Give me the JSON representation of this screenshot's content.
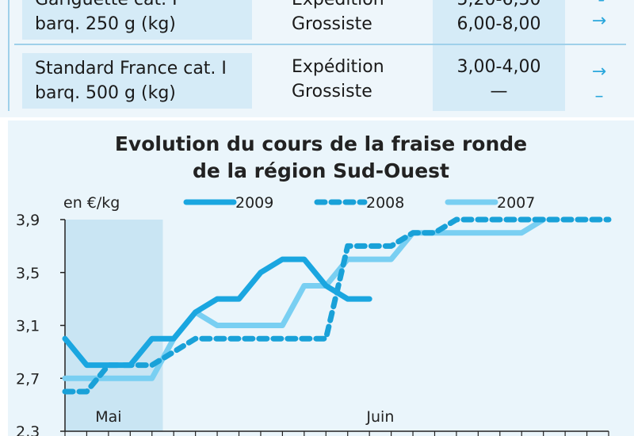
{
  "table": {
    "rows": [
      {
        "product_line1": "Gariguette cat. I",
        "product_line2": "barq. 250 g (kg)",
        "circuit1": "Expédition",
        "circuit2": "Grossiste",
        "price1": "5,20-6,50",
        "price2": "6,00-8,00",
        "trend1": "↘",
        "trend2": "→"
      },
      {
        "product_line1": "Standard France cat. I",
        "product_line2": "barq. 500 g (kg)",
        "circuit1": "Expédition",
        "circuit2": "Grossiste",
        "price1": "3,00-4,00",
        "price2": "—",
        "trend1": "→",
        "trend2": "–"
      }
    ]
  },
  "colors": {
    "s2009": "#1aa6e0",
    "s2008": "#19a1d8",
    "s2007": "#79cff2",
    "may_band": "#c9e5f3",
    "panel": "#eaf5fb"
  },
  "chart_data": {
    "type": "line",
    "title": "Evolution du cours de la fraise ronde",
    "subtitle": "de la région Sud-Ouest",
    "ylabel": "en €/kg",
    "xlabel": "",
    "ylim": [
      2.3,
      3.9
    ],
    "yticks": [
      "3,9",
      "3,5",
      "3,1",
      "2,7",
      "2,3"
    ],
    "ytick_values": [
      3.9,
      3.5,
      3.1,
      2.7,
      2.3
    ],
    "xlim": [
      0,
      25
    ],
    "month_labels": [
      {
        "label": "Mai",
        "x": 2
      },
      {
        "label": "Juin",
        "x": 14.5
      }
    ],
    "may_band": [
      0,
      4.5
    ],
    "grid": false,
    "legend_position": "top",
    "series": [
      {
        "name": "2009",
        "style": "solid",
        "x": [
          0,
          1,
          2,
          3,
          4,
          5,
          6,
          7,
          8,
          9,
          10,
          11,
          12,
          13,
          14
        ],
        "values": [
          3.0,
          2.8,
          2.8,
          2.8,
          3.0,
          3.0,
          3.2,
          3.3,
          3.3,
          3.5,
          3.6,
          3.6,
          3.4,
          3.3,
          3.3
        ]
      },
      {
        "name": "2008",
        "style": "dashed",
        "x": [
          0,
          1,
          2,
          3,
          4,
          5,
          6,
          7,
          8,
          9,
          10,
          11,
          12,
          13,
          14,
          15,
          16,
          17,
          18,
          19,
          20,
          21,
          22,
          23,
          24,
          25
        ],
        "values": [
          2.6,
          2.6,
          2.8,
          2.8,
          2.8,
          2.9,
          3.0,
          3.0,
          3.0,
          3.0,
          3.0,
          3.0,
          3.0,
          3.7,
          3.7,
          3.7,
          3.8,
          3.8,
          3.9,
          3.9,
          3.9,
          3.9,
          3.9,
          3.9,
          3.9,
          3.9
        ]
      },
      {
        "name": "2007",
        "style": "solid-light",
        "x": [
          0,
          1,
          2,
          3,
          4,
          5,
          6,
          7,
          8,
          9,
          10,
          11,
          12,
          13,
          14,
          15,
          16,
          17,
          18,
          19,
          20,
          21,
          22
        ],
        "values": [
          2.7,
          2.7,
          2.7,
          2.7,
          2.7,
          3.0,
          3.2,
          3.1,
          3.1,
          3.1,
          3.1,
          3.4,
          3.4,
          3.6,
          3.6,
          3.6,
          3.8,
          3.8,
          3.8,
          3.8,
          3.8,
          3.8,
          3.9
        ]
      }
    ]
  }
}
